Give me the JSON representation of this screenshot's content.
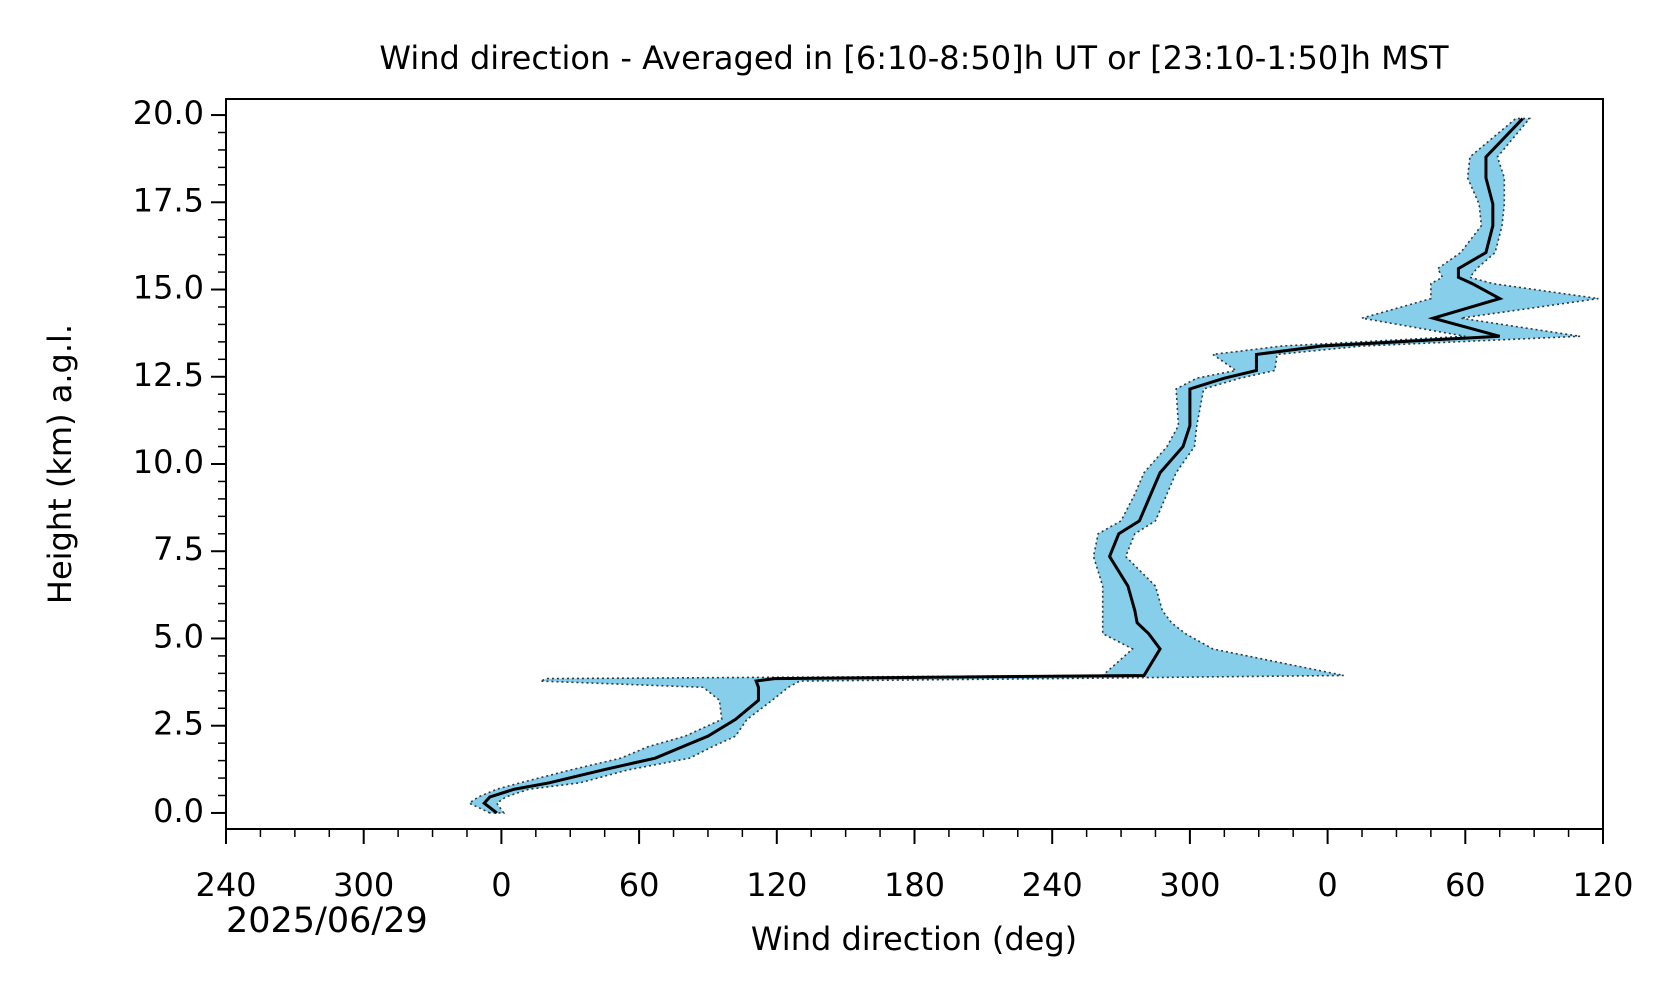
{
  "chart_data": {
    "type": "line",
    "title": "Wind direction - Averaged in [6:10-8:50]h UT or [23:10-1:50]h MST",
    "xlabel": "Wind direction (deg)",
    "ylabel": "Height (km) a.g.l.",
    "annotation": "2025/06/29",
    "xlim": [
      -120,
      480
    ],
    "xticks": [
      {
        "value": -120,
        "label": "240"
      },
      {
        "value": -60,
        "label": "300"
      },
      0,
      60,
      120,
      180,
      240,
      300,
      {
        "value": 360,
        "label": "0"
      },
      {
        "value": 420,
        "label": "60"
      },
      {
        "value": 480,
        "label": "120"
      }
    ],
    "ylim": [
      -0.46,
      20.46
    ],
    "yticks": [
      {
        "value": 0,
        "label": "0.0"
      },
      {
        "value": 2.5,
        "label": "2.5"
      },
      {
        "value": 5,
        "label": "5.0"
      },
      {
        "value": 7.5,
        "label": "7.5"
      },
      {
        "value": 10,
        "label": "10.0"
      },
      {
        "value": 12.5,
        "label": "12.5"
      },
      {
        "value": 15,
        "label": "15.0"
      },
      {
        "value": 17.5,
        "label": "17.5"
      },
      {
        "value": 20,
        "label": "20.0"
      }
    ],
    "y": [
      0,
      0.28,
      0.46,
      0.68,
      0.86,
      1.23,
      1.57,
      1.9,
      2.2,
      2.68,
      3.23,
      3.6,
      3.78,
      3.85,
      3.94,
      4.7,
      5.14,
      5.45,
      5.8,
      6.5,
      7.35,
      8.0,
      8.37,
      9.14,
      9.75,
      10.5,
      11.1,
      12.15,
      12.46,
      12.68,
      13.14,
      13.38,
      13.66,
      14.18,
      14.74,
      15.17,
      15.35,
      15.6,
      16.06,
      16.83,
      17.45,
      18.2,
      18.8,
      19.9
    ],
    "series": [
      {
        "color": "#000000",
        "values": [
          -2,
          -7.5,
          -5,
          5.6,
          20.6,
          44,
          67,
          79,
          90,
          102,
          112,
          112,
          111,
          119,
          280,
          287,
          282,
          277,
          276,
          273,
          265,
          269,
          278,
          283,
          287,
          297,
          300,
          300,
          315,
          329,
          329,
          357.5,
          435,
          406,
          435,
          423,
          417,
          417,
          429,
          432,
          432,
          429,
          429,
          445
        ]
      }
    ],
    "band": {
      "color": "#87ceeb",
      "lower": [
        -5,
        -14,
        -10,
        -2,
        8,
        30,
        52,
        64,
        80,
        96,
        95,
        88,
        17,
        20,
        262,
        275,
        262,
        262,
        262,
        262,
        258,
        260,
        270,
        276,
        280,
        290,
        295,
        294,
        303,
        320,
        310,
        340,
        420,
        375,
        405,
        405,
        410,
        408,
        418,
        427,
        426,
        421,
        422,
        442
      ],
      "upper": [
        1,
        -2,
        2,
        12,
        34,
        55,
        82,
        92,
        102,
        107,
        118,
        125,
        130,
        240,
        367,
        310,
        298,
        292,
        288,
        285,
        272,
        276,
        285,
        290,
        294,
        302,
        303,
        306,
        322,
        337,
        338,
        375,
        470,
        418,
        478,
        432,
        422,
        425,
        433,
        436,
        437,
        437,
        434,
        448
      ]
    }
  }
}
